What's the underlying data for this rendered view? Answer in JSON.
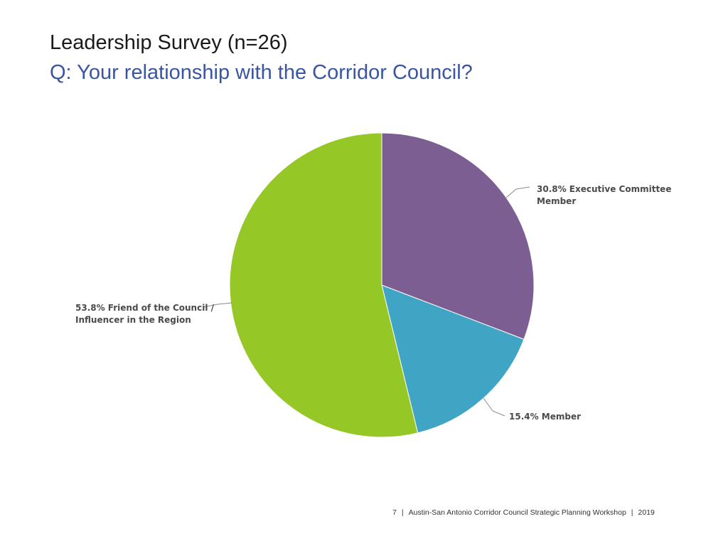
{
  "slide": {
    "title": "Leadership Survey (n=26)",
    "subtitle": "Q: Your relationship with the Corridor Council?"
  },
  "footer": {
    "page": "7",
    "separator": "|",
    "text": "Austin-San Antonio Corridor Council Strategic Planning Workshop",
    "year": "2019"
  },
  "chart_data": {
    "type": "pie",
    "slices": [
      {
        "label_lines": [
          "30.8% Executive Committee",
          "Member"
        ],
        "value": 30.8,
        "color": "#7d5e92"
      },
      {
        "label_lines": [
          "15.4% Member"
        ],
        "value": 15.4,
        "color": "#40a4c4"
      },
      {
        "label_lines": [
          "53.8% Friend of the Council /",
          "Influencer in the Region"
        ],
        "value": 53.8,
        "color": "#95c826"
      }
    ]
  }
}
